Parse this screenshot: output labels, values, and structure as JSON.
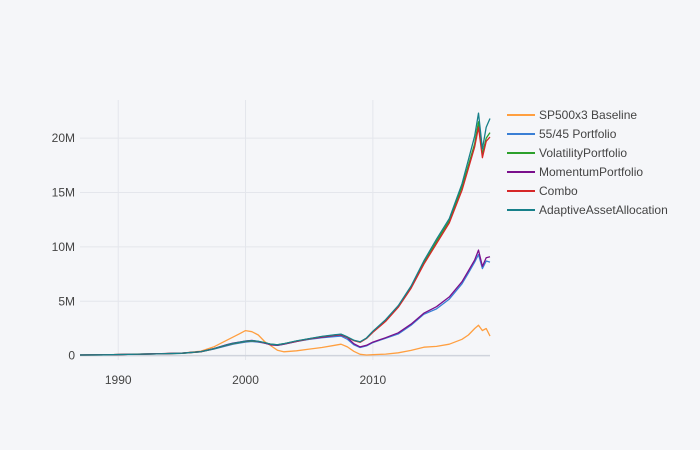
{
  "chart_data": {
    "type": "line",
    "title": "",
    "xlabel": "",
    "ylabel": "",
    "xlim": [
      1987.0,
      2019.2
    ],
    "ylim": [
      -400000,
      23500000
    ],
    "x_ticks": [
      {
        "value": 1990,
        "label": "1990"
      },
      {
        "value": 2000,
        "label": "2000"
      },
      {
        "value": 2010,
        "label": "2010"
      }
    ],
    "y_ticks": [
      {
        "value": 0,
        "label": "0"
      },
      {
        "value": 5000000,
        "label": "5M"
      },
      {
        "value": 10000000,
        "label": "10M"
      },
      {
        "value": 15000000,
        "label": "15M"
      },
      {
        "value": 20000000,
        "label": "20M"
      }
    ],
    "grid": true,
    "legend_position": "right",
    "series": [
      {
        "name": "SP500x3 Baseline",
        "color": "#ff9f40",
        "x": [
          1987.0,
          1989.0,
          1991.0,
          1993.0,
          1995.0,
          1996.5,
          1997.5,
          1998.5,
          1999.0,
          1999.5,
          2000.0,
          2000.5,
          2001.0,
          2001.5,
          2002.0,
          2002.5,
          2003.0,
          2004.0,
          2005.0,
          2006.0,
          2007.0,
          2007.5,
          2008.0,
          2008.5,
          2009.0,
          2009.5,
          2010.0,
          2011.0,
          2012.0,
          2013.0,
          2014.0,
          2015.0,
          2016.0,
          2017.0,
          2017.5,
          2018.0,
          2018.3,
          2018.6,
          2018.9,
          2019.2
        ],
        "y": [
          60000,
          80000,
          130000,
          170000,
          230000,
          420000,
          800000,
          1400000,
          1700000,
          2000000,
          2300000,
          2200000,
          1900000,
          1300000,
          900000,
          500000,
          350000,
          450000,
          600000,
          750000,
          950000,
          1050000,
          800000,
          400000,
          120000,
          60000,
          90000,
          140000,
          260000,
          480000,
          780000,
          850000,
          1050000,
          1500000,
          1900000,
          2500000,
          2800000,
          2300000,
          2500000,
          1800000
        ]
      },
      {
        "name": "55/45 Portfolio",
        "color": "#3a7fd5",
        "x": [
          1987.0,
          1989.0,
          1991.0,
          1993.0,
          1995.0,
          1996.5,
          1997.5,
          1998.5,
          1999.0,
          1999.5,
          2000.0,
          2000.5,
          2001.0,
          2001.5,
          2002.0,
          2002.5,
          2003.0,
          2004.0,
          2005.0,
          2006.0,
          2007.0,
          2007.5,
          2008.0,
          2008.5,
          2009.0,
          2009.5,
          2010.0,
          2011.0,
          2012.0,
          2013.0,
          2014.0,
          2015.0,
          2016.0,
          2017.0,
          2017.5,
          2018.0,
          2018.3,
          2018.6,
          2018.9,
          2019.2
        ],
        "y": [
          60000,
          80000,
          120000,
          160000,
          220000,
          350000,
          600000,
          900000,
          1050000,
          1150000,
          1250000,
          1300000,
          1250000,
          1150000,
          1000000,
          950000,
          1050000,
          1300000,
          1500000,
          1650000,
          1750000,
          1800000,
          1500000,
          1000000,
          750000,
          900000,
          1200000,
          1600000,
          2000000,
          2800000,
          3800000,
          4300000,
          5200000,
          6600000,
          7600000,
          8600000,
          9300000,
          8000000,
          8700000,
          8600000
        ]
      },
      {
        "name": "VolatilityPortfolio",
        "color": "#2ca02c",
        "x": [
          1987.0,
          1989.0,
          1991.0,
          1993.0,
          1995.0,
          1996.5,
          1997.5,
          1998.5,
          1999.0,
          1999.5,
          2000.0,
          2000.5,
          2001.0,
          2001.5,
          2002.0,
          2002.5,
          2003.0,
          2004.0,
          2005.0,
          2006.0,
          2007.0,
          2007.5,
          2008.0,
          2008.5,
          2009.0,
          2009.5,
          2010.0,
          2011.0,
          2012.0,
          2013.0,
          2014.0,
          2015.0,
          2016.0,
          2017.0,
          2017.5,
          2018.0,
          2018.3,
          2018.6,
          2018.9,
          2019.2
        ],
        "y": [
          60000,
          80000,
          120000,
          160000,
          220000,
          360000,
          620000,
          950000,
          1100000,
          1200000,
          1300000,
          1350000,
          1300000,
          1200000,
          1050000,
          1000000,
          1100000,
          1350000,
          1550000,
          1750000,
          1900000,
          1950000,
          1700000,
          1400000,
          1250000,
          1600000,
          2200000,
          3200000,
          4500000,
          6300000,
          8500000,
          10500000,
          12400000,
          15500000,
          17500000,
          19500000,
          21500000,
          18500000,
          20000000,
          20500000
        ]
      },
      {
        "name": "MomentumPortfolio",
        "color": "#7a0f8c",
        "x": [
          1987.0,
          1989.0,
          1991.0,
          1993.0,
          1995.0,
          1996.5,
          1997.5,
          1998.5,
          1999.0,
          1999.5,
          2000.0,
          2000.5,
          2001.0,
          2001.5,
          2002.0,
          2002.5,
          2003.0,
          2004.0,
          2005.0,
          2006.0,
          2007.0,
          2007.5,
          2008.0,
          2008.5,
          2009.0,
          2009.5,
          2010.0,
          2011.0,
          2012.0,
          2013.0,
          2014.0,
          2015.0,
          2016.0,
          2017.0,
          2017.5,
          2018.0,
          2018.3,
          2018.6,
          2018.9,
          2019.2
        ],
        "y": [
          60000,
          80000,
          120000,
          170000,
          230000,
          370000,
          650000,
          1000000,
          1150000,
          1250000,
          1350000,
          1400000,
          1300000,
          1150000,
          1000000,
          950000,
          1050000,
          1300000,
          1550000,
          1700000,
          1850000,
          1900000,
          1650000,
          1100000,
          800000,
          950000,
          1250000,
          1650000,
          2100000,
          2900000,
          3900000,
          4500000,
          5400000,
          6800000,
          7800000,
          8800000,
          9700000,
          8200000,
          9000000,
          9100000
        ]
      },
      {
        "name": "Combo",
        "color": "#d62728",
        "x": [
          1987.0,
          1989.0,
          1991.0,
          1993.0,
          1995.0,
          1996.5,
          1997.5,
          1998.5,
          1999.0,
          1999.5,
          2000.0,
          2000.5,
          2001.0,
          2001.5,
          2002.0,
          2002.5,
          2003.0,
          2004.0,
          2005.0,
          2006.0,
          2007.0,
          2007.5,
          2008.0,
          2008.5,
          2009.0,
          2009.5,
          2010.0,
          2011.0,
          2012.0,
          2013.0,
          2014.0,
          2015.0,
          2016.0,
          2017.0,
          2017.5,
          2018.0,
          2018.3,
          2018.6,
          2018.9,
          2019.2
        ],
        "y": [
          60000,
          80000,
          120000,
          165000,
          225000,
          365000,
          630000,
          970000,
          1120000,
          1220000,
          1320000,
          1370000,
          1300000,
          1180000,
          1030000,
          980000,
          1080000,
          1330000,
          1540000,
          1740000,
          1880000,
          1940000,
          1680000,
          1380000,
          1230000,
          1580000,
          2150000,
          3150000,
          4450000,
          6200000,
          8400000,
          10300000,
          12200000,
          15200000,
          17200000,
          19200000,
          21000000,
          18200000,
          19700000,
          20100000
        ]
      },
      {
        "name": "AdaptiveAssetAllocation",
        "color": "#17808a",
        "x": [
          1987.0,
          1989.0,
          1991.0,
          1993.0,
          1995.0,
          1996.5,
          1997.5,
          1998.5,
          1999.0,
          1999.5,
          2000.0,
          2000.5,
          2001.0,
          2001.5,
          2002.0,
          2002.5,
          2003.0,
          2004.0,
          2005.0,
          2006.0,
          2007.0,
          2007.5,
          2008.0,
          2008.5,
          2009.0,
          2009.5,
          2010.0,
          2011.0,
          2012.0,
          2013.0,
          2014.0,
          2015.0,
          2016.0,
          2017.0,
          2017.5,
          2018.0,
          2018.3,
          2018.6,
          2018.9,
          2019.2
        ],
        "y": [
          60000,
          80000,
          125000,
          165000,
          225000,
          370000,
          640000,
          980000,
          1130000,
          1230000,
          1330000,
          1380000,
          1320000,
          1200000,
          1050000,
          1000000,
          1100000,
          1360000,
          1570000,
          1770000,
          1920000,
          1980000,
          1720000,
          1420000,
          1270000,
          1620000,
          2250000,
          3300000,
          4600000,
          6400000,
          8700000,
          10700000,
          12600000,
          15800000,
          18000000,
          20200000,
          22300000,
          19000000,
          21000000,
          21800000
        ]
      }
    ]
  }
}
